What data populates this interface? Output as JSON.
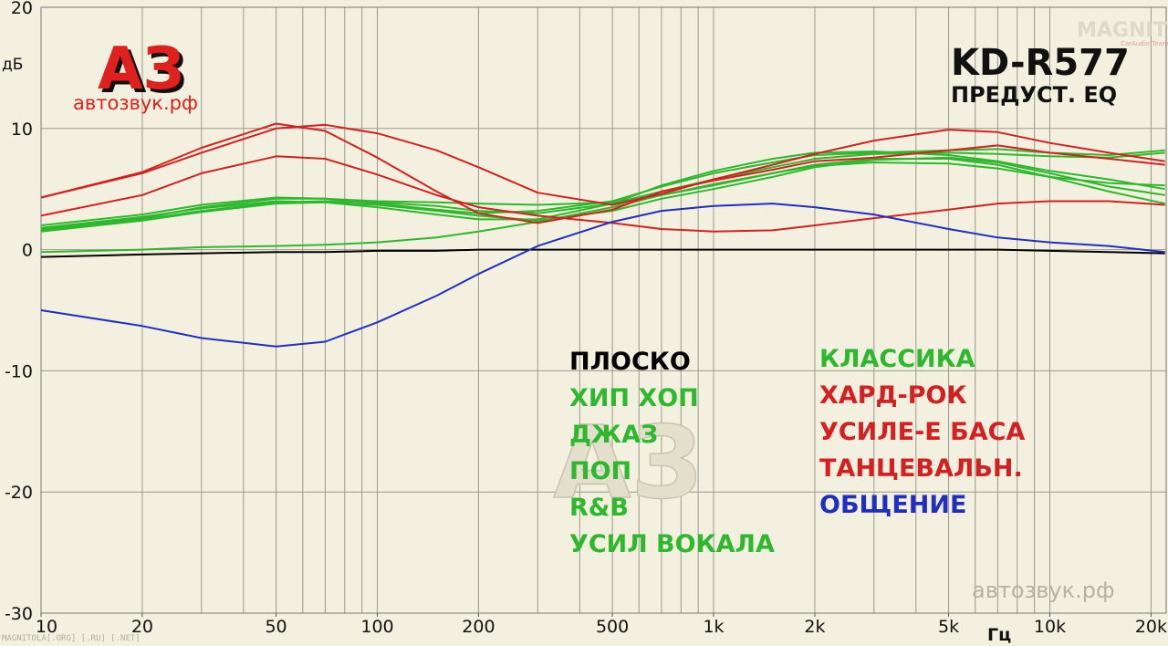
{
  "chart_data": {
    "type": "line",
    "title": "KD-R577",
    "subtitle": "ПРЕДУСТ. EQ",
    "y_label": "дБ",
    "x_label": "Гц",
    "logo": "АЗ",
    "logo_site": "автозвук.рф",
    "watermark_center": "АЗ",
    "watermark_site": "автозвук.рф",
    "watermark_top": "MAGNITOLA",
    "watermark_top_sub": "CarAudio Team",
    "watermark_bottom": "MAGNITOLA[.ORG] [.RU] [.NET]",
    "x_log": true,
    "xlim": [
      10,
      22000
    ],
    "xticks": [
      10,
      20,
      50,
      100,
      200,
      500,
      {
        "value": 1000,
        "label": "1k"
      },
      {
        "value": 2000,
        "label": "2k"
      },
      {
        "value": 5000,
        "label": "5k"
      },
      {
        "value": 10000,
        "label": "10k"
      },
      {
        "value": 20000,
        "label": "20k"
      }
    ],
    "xgrid": [
      10,
      20,
      30,
      40,
      50,
      60,
      70,
      80,
      90,
      100,
      200,
      300,
      400,
      500,
      600,
      700,
      800,
      900,
      1000,
      2000,
      3000,
      4000,
      5000,
      6000,
      7000,
      8000,
      9000,
      10000,
      20000
    ],
    "ylim": [
      -30,
      20
    ],
    "yticks": [
      20,
      10,
      0,
      -10,
      -20,
      -30
    ],
    "grid": true,
    "x": [
      10,
      20,
      30,
      50,
      70,
      100,
      150,
      200,
      300,
      500,
      700,
      1000,
      1500,
      2000,
      3000,
      5000,
      7000,
      10000,
      15000,
      22000
    ],
    "series": [
      {
        "name": "ПЛОСКО",
        "color": "#000000",
        "values": [
          -0.6,
          -0.4,
          -0.3,
          -0.2,
          -0.2,
          -0.1,
          -0.1,
          0,
          0,
          0,
          0,
          0,
          0,
          0,
          0,
          0,
          0,
          -0.1,
          -0.2,
          -0.3
        ]
      },
      {
        "name": "ХИП ХОП",
        "color": "#2db82d",
        "values": [
          2.0,
          2.9,
          3.7,
          4.3,
          4.2,
          3.8,
          3.3,
          3.0,
          3.2,
          4.0,
          5.2,
          6.3,
          7.2,
          7.8,
          8.0,
          8.2,
          8.3,
          8.0,
          7.8,
          8.2
        ]
      },
      {
        "name": "ДЖАЗ",
        "color": "#2db82d",
        "values": [
          1.8,
          2.7,
          3.4,
          4.0,
          3.9,
          3.5,
          2.9,
          2.5,
          2.5,
          3.8,
          5.3,
          6.5,
          7.5,
          8.0,
          8.1,
          7.8,
          7.3,
          6.5,
          5.8,
          5.0
        ]
      },
      {
        "name": "ПОП",
        "color": "#2db82d",
        "values": [
          1.5,
          2.4,
          3.1,
          3.8,
          3.9,
          3.7,
          3.2,
          2.8,
          2.4,
          3.2,
          4.2,
          5.0,
          6.0,
          6.8,
          7.4,
          7.6,
          7.2,
          6.3,
          5.2,
          4.5
        ]
      },
      {
        "name": "R&B",
        "color": "#2db82d",
        "values": [
          1.7,
          2.6,
          3.5,
          4.2,
          4.2,
          4.0,
          3.9,
          3.8,
          3.7,
          3.9,
          4.5,
          5.3,
          6.3,
          7.0,
          7.5,
          7.5,
          7.0,
          6.0,
          4.8,
          3.8
        ]
      },
      {
        "name": "УСИЛ ВОКАЛА",
        "color": "#2db82d",
        "values": [
          -0.2,
          0,
          0.2,
          0.3,
          0.4,
          0.6,
          1.0,
          1.5,
          2.3,
          3.5,
          4.5,
          5.4,
          6.3,
          6.9,
          7.2,
          7.1,
          6.7,
          6.0,
          5.5,
          5.3
        ]
      },
      {
        "name": "КЛАССИКА",
        "color": "#2db82d",
        "values": [
          1.6,
          2.5,
          3.2,
          3.9,
          4.0,
          3.9,
          3.6,
          3.2,
          3.0,
          3.8,
          4.8,
          5.8,
          6.8,
          7.5,
          7.9,
          8.0,
          7.9,
          7.7,
          7.6,
          8.0
        ]
      },
      {
        "name": "ХАРД-РОК",
        "color": "#d42020",
        "values": [
          4.3,
          6.3,
          8.0,
          10.0,
          10.3,
          9.6,
          8.2,
          6.8,
          4.7,
          3.7,
          4.6,
          5.8,
          7.0,
          7.9,
          9.0,
          9.9,
          9.7,
          8.8,
          8.0,
          7.3
        ]
      },
      {
        "name": "УСИЛЕ-Е БАСА",
        "color": "#d42020",
        "values": [
          2.8,
          4.5,
          6.3,
          7.7,
          7.5,
          6.2,
          4.5,
          3.5,
          2.8,
          2.2,
          1.7,
          1.5,
          1.6,
          2.0,
          2.6,
          3.3,
          3.8,
          4.0,
          4.0,
          3.7
        ]
      },
      {
        "name": "ТАНЦЕВАЛЬН.",
        "color": "#d42020",
        "values": [
          4.3,
          6.4,
          8.4,
          10.4,
          9.8,
          7.6,
          4.8,
          3.0,
          2.2,
          3.3,
          4.8,
          5.7,
          6.6,
          7.3,
          7.6,
          8.2,
          8.6,
          8.0,
          7.5,
          7.0
        ]
      },
      {
        "name": "ОБЩЕНИЕ",
        "color": "#1f2fc0",
        "values": [
          -5.0,
          -6.3,
          -7.3,
          -8.0,
          -7.6,
          -6.0,
          -3.8,
          -2.0,
          0.3,
          2.3,
          3.2,
          3.6,
          3.8,
          3.5,
          2.9,
          1.7,
          1.0,
          0.6,
          0.3,
          -0.2
        ]
      }
    ]
  }
}
